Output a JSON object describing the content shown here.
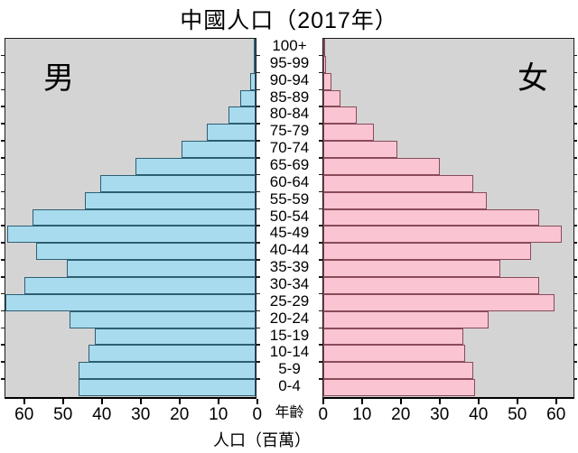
{
  "title": "中國人口（2017年）",
  "male_label": "男",
  "female_label": "女",
  "age_axis_label": "年齡",
  "xlabel": "人口（百萬）",
  "chart_data": {
    "type": "bar",
    "subtype": "population_pyramid",
    "title": "中國人口（2017年）",
    "xlabel": "人口（百萬）",
    "age_axis_label": "年齡",
    "categories_top_to_bottom": [
      "100+",
      "95-99",
      "90-94",
      "85-89",
      "80-84",
      "75-79",
      "70-74",
      "65-69",
      "60-64",
      "55-59",
      "50-54",
      "45-49",
      "40-44",
      "35-39",
      "30-34",
      "25-29",
      "20-24",
      "15-19",
      "10-14",
      "5-9",
      "0-4"
    ],
    "series": [
      {
        "name": "男",
        "side": "left",
        "values": [
          0.1,
          0.5,
          1.5,
          4,
          7,
          12.5,
          19,
          31,
          40,
          44,
          57.5,
          64,
          56.5,
          48.5,
          59.5,
          64.5,
          48,
          41.5,
          43,
          45.5,
          45.5
        ]
      },
      {
        "name": "女",
        "side": "right",
        "values": [
          0.1,
          0.7,
          2,
          4.5,
          8.5,
          13,
          19,
          30,
          38.5,
          42,
          55.5,
          61.5,
          53.5,
          45.5,
          55.5,
          59.5,
          42.5,
          36,
          36.5,
          38.5,
          39
        ]
      }
    ],
    "x_ticks": [
      0,
      10,
      20,
      30,
      40,
      50,
      60
    ],
    "x_max_each_side": 65,
    "grid": false,
    "legend_position": "labels-inside-panels"
  },
  "colors": {
    "male_fill": "#a8dbee",
    "male_border": "#2d5f73",
    "female_fill": "#fac4d2",
    "female_border": "#8a4a5a",
    "panel_bg": "#d4d4d4",
    "panel_border": "#1a1a1a",
    "text": "#000000",
    "background": "#ffffff"
  }
}
